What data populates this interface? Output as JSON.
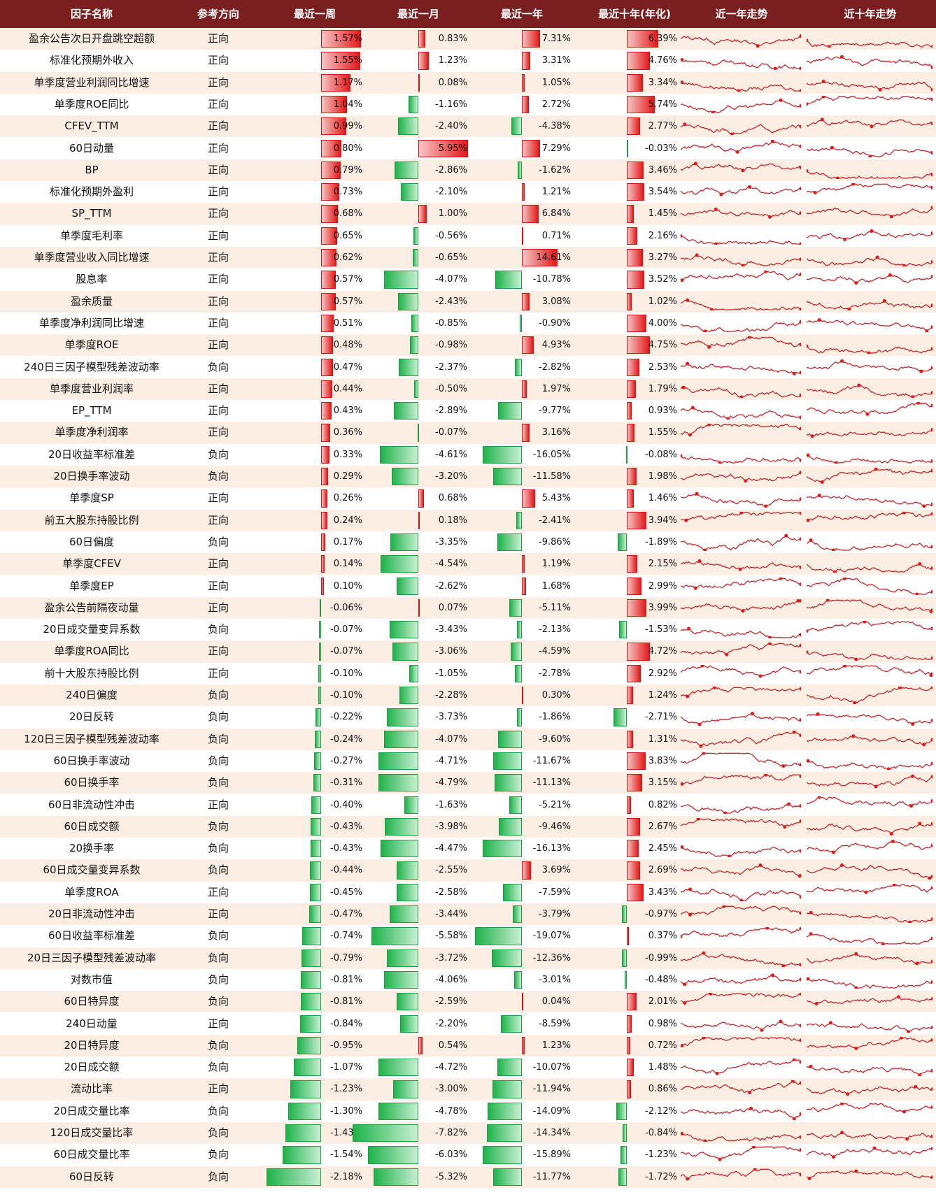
{
  "headers": [
    "因子名称",
    "参考方向",
    "最近一周",
    "最近一月",
    "最近一年",
    "最近十年(年化)",
    "近一年走势",
    "近十年走势"
  ],
  "colors": {
    "header_bg": "#7a1f1f",
    "positive": "#e51818",
    "negative": "#1eb34a",
    "row_alt": "#fdeee4",
    "sparkline": "#c0282d"
  },
  "chart_data": {
    "type": "table",
    "columns": [
      "因子名称",
      "参考方向",
      "最近一周",
      "最近一月",
      "最近一年",
      "最近十年(年化)"
    ],
    "rows": [
      {
        "name": "盈余公告次日开盘跳空超额",
        "dir": "正向",
        "w": 1.57,
        "m": 0.83,
        "y": 7.31,
        "t": 6.39
      },
      {
        "name": "标准化预期外收入",
        "dir": "正向",
        "w": 1.55,
        "m": 1.23,
        "y": 3.31,
        "t": 4.76
      },
      {
        "name": "单季度营业利润同比增速",
        "dir": "正向",
        "w": 1.17,
        "m": 0.08,
        "y": 1.05,
        "t": 3.34
      },
      {
        "name": "单季度ROE同比",
        "dir": "正向",
        "w": 1.04,
        "m": -1.16,
        "y": 2.72,
        "t": 5.74
      },
      {
        "name": "CFEV_TTM",
        "dir": "正向",
        "w": 0.99,
        "m": -2.4,
        "y": -4.38,
        "t": 2.77
      },
      {
        "name": "60日动量",
        "dir": "正向",
        "w": 0.8,
        "m": 5.95,
        "y": 7.29,
        "t": -0.03
      },
      {
        "name": "BP",
        "dir": "正向",
        "w": 0.79,
        "m": -2.86,
        "y": -1.62,
        "t": 3.46
      },
      {
        "name": "标准化预期外盈利",
        "dir": "正向",
        "w": 0.73,
        "m": -2.1,
        "y": 1.21,
        "t": 3.54
      },
      {
        "name": "SP_TTM",
        "dir": "正向",
        "w": 0.68,
        "m": 1.0,
        "y": 6.84,
        "t": 1.45
      },
      {
        "name": "单季度毛利率",
        "dir": "正向",
        "w": 0.65,
        "m": -0.56,
        "y": 0.71,
        "t": 2.16
      },
      {
        "name": "单季度营业收入同比增速",
        "dir": "正向",
        "w": 0.62,
        "m": -0.65,
        "y": 14.61,
        "t": 3.27
      },
      {
        "name": "股息率",
        "dir": "正向",
        "w": 0.57,
        "m": -4.07,
        "y": -10.78,
        "t": 3.52
      },
      {
        "name": "盈余质量",
        "dir": "正向",
        "w": 0.57,
        "m": -2.43,
        "y": 3.08,
        "t": 1.02
      },
      {
        "name": "单季度净利润同比增速",
        "dir": "正向",
        "w": 0.51,
        "m": -0.85,
        "y": -0.9,
        "t": 4.0
      },
      {
        "name": "单季度ROE",
        "dir": "正向",
        "w": 0.48,
        "m": -0.98,
        "y": 4.93,
        "t": 4.75
      },
      {
        "name": "240日三因子模型残差波动率",
        "dir": "负向",
        "w": 0.47,
        "m": -2.37,
        "y": -2.82,
        "t": 2.53
      },
      {
        "name": "单季度营业利润率",
        "dir": "正向",
        "w": 0.44,
        "m": -0.5,
        "y": 1.97,
        "t": 1.79
      },
      {
        "name": "EP_TTM",
        "dir": "正向",
        "w": 0.43,
        "m": -2.89,
        "y": -9.77,
        "t": 0.93
      },
      {
        "name": "单季度净利润率",
        "dir": "正向",
        "w": 0.36,
        "m": -0.07,
        "y": 3.16,
        "t": 1.55
      },
      {
        "name": "20日收益率标准差",
        "dir": "负向",
        "w": 0.33,
        "m": -4.61,
        "y": -16.05,
        "t": -0.08
      },
      {
        "name": "20日换手率波动",
        "dir": "负向",
        "w": 0.29,
        "m": -3.2,
        "y": -11.58,
        "t": 1.98
      },
      {
        "name": "单季度SP",
        "dir": "正向",
        "w": 0.26,
        "m": 0.68,
        "y": 5.43,
        "t": 1.46
      },
      {
        "name": "前五大股东持股比例",
        "dir": "正向",
        "w": 0.24,
        "m": 0.18,
        "y": -2.41,
        "t": 3.94
      },
      {
        "name": "60日偏度",
        "dir": "负向",
        "w": 0.17,
        "m": -3.35,
        "y": -9.86,
        "t": -1.89
      },
      {
        "name": "单季度CFEV",
        "dir": "正向",
        "w": 0.14,
        "m": -4.54,
        "y": 1.19,
        "t": 2.15
      },
      {
        "name": "单季度EP",
        "dir": "正向",
        "w": 0.1,
        "m": -2.62,
        "y": 1.68,
        "t": 2.99
      },
      {
        "name": "盈余公告前隔夜动量",
        "dir": "正向",
        "w": -0.06,
        "m": 0.07,
        "y": -5.11,
        "t": 3.99
      },
      {
        "name": "20日成交量变异系数",
        "dir": "负向",
        "w": -0.07,
        "m": -3.43,
        "y": -2.13,
        "t": -1.53
      },
      {
        "name": "单季度ROA同比",
        "dir": "正向",
        "w": -0.07,
        "m": -3.06,
        "y": -4.59,
        "t": 4.72
      },
      {
        "name": "前十大股东持股比例",
        "dir": "正向",
        "w": -0.1,
        "m": -1.05,
        "y": -2.78,
        "t": 2.92
      },
      {
        "name": "240日偏度",
        "dir": "负向",
        "w": -0.1,
        "m": -2.28,
        "y": 0.3,
        "t": 1.24
      },
      {
        "name": "20日反转",
        "dir": "负向",
        "w": -0.22,
        "m": -3.73,
        "y": -1.86,
        "t": -2.71
      },
      {
        "name": "120日三因子模型残差波动率",
        "dir": "负向",
        "w": -0.24,
        "m": -4.07,
        "y": -9.6,
        "t": 1.31
      },
      {
        "name": "60日换手率波动",
        "dir": "负向",
        "w": -0.27,
        "m": -4.71,
        "y": -11.67,
        "t": 3.83
      },
      {
        "name": "60日换手率",
        "dir": "负向",
        "w": -0.31,
        "m": -4.79,
        "y": -11.13,
        "t": 3.15
      },
      {
        "name": "60日非流动性冲击",
        "dir": "正向",
        "w": -0.4,
        "m": -1.63,
        "y": -5.21,
        "t": 0.82
      },
      {
        "name": "60日成交额",
        "dir": "负向",
        "w": -0.43,
        "m": -3.98,
        "y": -9.46,
        "t": 2.67
      },
      {
        "name": "20换手率",
        "dir": "负向",
        "w": -0.43,
        "m": -4.47,
        "y": -16.13,
        "t": 2.45
      },
      {
        "name": "60日成交量变异系数",
        "dir": "负向",
        "w": -0.44,
        "m": -2.55,
        "y": 3.69,
        "t": 2.69
      },
      {
        "name": "单季度ROA",
        "dir": "正向",
        "w": -0.45,
        "m": -2.58,
        "y": -7.59,
        "t": 3.43
      },
      {
        "name": "20日非流动性冲击",
        "dir": "正向",
        "w": -0.47,
        "m": -3.44,
        "y": -3.79,
        "t": -0.97
      },
      {
        "name": "60日收益率标准差",
        "dir": "负向",
        "w": -0.74,
        "m": -5.58,
        "y": -19.07,
        "t": 0.37
      },
      {
        "name": "20日三因子模型残差波动率",
        "dir": "负向",
        "w": -0.79,
        "m": -3.72,
        "y": -12.36,
        "t": -0.99
      },
      {
        "name": "对数市值",
        "dir": "负向",
        "w": -0.81,
        "m": -4.06,
        "y": -3.01,
        "t": -0.48
      },
      {
        "name": "60日特异度",
        "dir": "负向",
        "w": -0.81,
        "m": -2.59,
        "y": 0.04,
        "t": 2.01
      },
      {
        "name": "240日动量",
        "dir": "正向",
        "w": -0.84,
        "m": -2.2,
        "y": -8.59,
        "t": 0.98
      },
      {
        "name": "20日特异度",
        "dir": "负向",
        "w": -0.95,
        "m": 0.54,
        "y": 1.23,
        "t": 0.72
      },
      {
        "name": "20日成交额",
        "dir": "负向",
        "w": -1.07,
        "m": -4.72,
        "y": -10.07,
        "t": 1.48
      },
      {
        "name": "流动比率",
        "dir": "正向",
        "w": -1.23,
        "m": -3.0,
        "y": -11.94,
        "t": 0.86
      },
      {
        "name": "20日成交量比率",
        "dir": "负向",
        "w": -1.3,
        "m": -4.78,
        "y": -14.09,
        "t": -2.12
      },
      {
        "name": "120日成交量比率",
        "dir": "负向",
        "w": -1.43,
        "m": -7.82,
        "y": -14.34,
        "t": -0.84
      },
      {
        "name": "60日成交量比率",
        "dir": "负向",
        "w": -1.54,
        "m": -6.03,
        "y": -15.89,
        "t": -1.23
      },
      {
        "name": "60日反转",
        "dir": "负向",
        "w": -2.18,
        "m": -5.32,
        "y": -11.77,
        "t": -1.72
      }
    ]
  }
}
